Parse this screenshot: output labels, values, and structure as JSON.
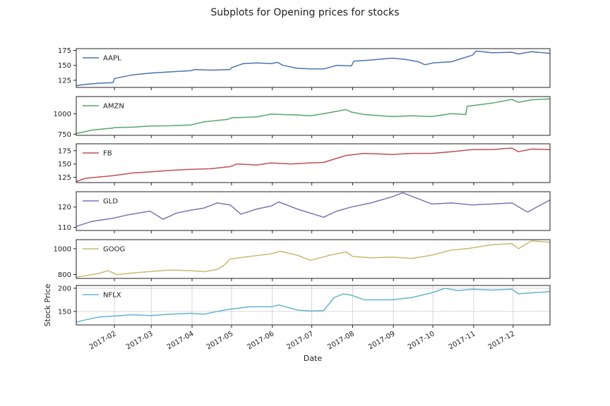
{
  "chart_data": {
    "type": "line",
    "title": "Subplots for Opening prices for stocks",
    "xlabel": "Date",
    "ylabel": "Stock Price",
    "xlim": [
      "2017-01-03",
      "2017-12-29"
    ],
    "x_ticks": [
      "2017-02",
      "2017-03",
      "2017-04",
      "2017-05",
      "2017-06",
      "2017-07",
      "2017-08",
      "2017-09",
      "2017-10",
      "2017-11",
      "2017-12"
    ],
    "legend_position": "upper-left",
    "shared_x": true,
    "subplots": [
      {
        "name": "AAPL",
        "color": "#4c72b0",
        "ylim": [
          113,
          178
        ],
        "yticks": [
          "125",
          "150",
          "175"
        ],
        "grid": false,
        "points": [
          [
            "2017-01-03",
            116
          ],
          [
            "2017-01-10",
            118
          ],
          [
            "2017-01-20",
            120
          ],
          [
            "2017-01-31",
            121
          ],
          [
            "2017-02-01",
            128
          ],
          [
            "2017-02-15",
            134
          ],
          [
            "2017-02-28",
            137
          ],
          [
            "2017-03-15",
            139
          ],
          [
            "2017-03-31",
            141
          ],
          [
            "2017-04-03",
            143
          ],
          [
            "2017-04-15",
            142
          ],
          [
            "2017-04-30",
            143
          ],
          [
            "2017-05-01",
            146
          ],
          [
            "2017-05-10",
            153
          ],
          [
            "2017-05-20",
            154
          ],
          [
            "2017-05-31",
            153
          ],
          [
            "2017-06-05",
            155
          ],
          [
            "2017-06-09",
            150
          ],
          [
            "2017-06-20",
            145
          ],
          [
            "2017-06-30",
            144
          ],
          [
            "2017-07-10",
            144
          ],
          [
            "2017-07-20",
            150
          ],
          [
            "2017-07-31",
            149
          ],
          [
            "2017-08-02",
            157
          ],
          [
            "2017-08-15",
            159
          ],
          [
            "2017-08-31",
            162
          ],
          [
            "2017-09-10",
            160
          ],
          [
            "2017-09-20",
            156
          ],
          [
            "2017-09-25",
            151
          ],
          [
            "2017-10-01",
            154
          ],
          [
            "2017-10-15",
            156
          ],
          [
            "2017-10-31",
            167
          ],
          [
            "2017-11-03",
            174
          ],
          [
            "2017-11-15",
            171
          ],
          [
            "2017-11-30",
            172
          ],
          [
            "2017-12-05",
            169
          ],
          [
            "2017-12-15",
            173
          ],
          [
            "2017-12-29",
            170
          ]
        ]
      },
      {
        "name": "AMZN",
        "color": "#55a868",
        "ylim": [
          735,
          1210
        ],
        "yticks": [
          "750",
          "1000"
        ],
        "grid": false,
        "points": [
          [
            "2017-01-03",
            757
          ],
          [
            "2017-01-15",
            800
          ],
          [
            "2017-01-31",
            825
          ],
          [
            "2017-02-01",
            830
          ],
          [
            "2017-02-15",
            835
          ],
          [
            "2017-02-28",
            850
          ],
          [
            "2017-03-15",
            852
          ],
          [
            "2017-03-31",
            862
          ],
          [
            "2017-04-10",
            900
          ],
          [
            "2017-04-28",
            930
          ],
          [
            "2017-05-01",
            950
          ],
          [
            "2017-05-20",
            960
          ],
          [
            "2017-05-31",
            995
          ],
          [
            "2017-06-09",
            990
          ],
          [
            "2017-06-20",
            985
          ],
          [
            "2017-06-30",
            975
          ],
          [
            "2017-07-10",
            1000
          ],
          [
            "2017-07-27",
            1050
          ],
          [
            "2017-07-31",
            1020
          ],
          [
            "2017-08-10",
            990
          ],
          [
            "2017-08-31",
            965
          ],
          [
            "2017-09-15",
            975
          ],
          [
            "2017-09-30",
            965
          ],
          [
            "2017-10-15",
            1000
          ],
          [
            "2017-10-26",
            990
          ],
          [
            "2017-10-27",
            1090
          ],
          [
            "2017-11-15",
            1130
          ],
          [
            "2017-11-30",
            1175
          ],
          [
            "2017-12-05",
            1140
          ],
          [
            "2017-12-15",
            1170
          ],
          [
            "2017-12-29",
            1182
          ]
        ]
      },
      {
        "name": "FB",
        "color": "#c44e52",
        "ylim": [
          115,
          188
        ],
        "yticks": [
          "125",
          "150",
          "175"
        ],
        "grid": false,
        "points": [
          [
            "2017-01-03",
            117
          ],
          [
            "2017-01-10",
            123
          ],
          [
            "2017-01-31",
            128
          ],
          [
            "2017-02-15",
            133
          ],
          [
            "2017-02-28",
            135
          ],
          [
            "2017-03-15",
            138
          ],
          [
            "2017-03-31",
            140
          ],
          [
            "2017-04-15",
            141
          ],
          [
            "2017-04-30",
            145
          ],
          [
            "2017-05-05",
            150
          ],
          [
            "2017-05-20",
            148
          ],
          [
            "2017-05-31",
            152
          ],
          [
            "2017-06-15",
            150
          ],
          [
            "2017-06-30",
            152
          ],
          [
            "2017-07-10",
            153
          ],
          [
            "2017-07-27",
            166
          ],
          [
            "2017-08-10",
            170
          ],
          [
            "2017-08-31",
            168
          ],
          [
            "2017-09-15",
            170
          ],
          [
            "2017-09-30",
            170
          ],
          [
            "2017-10-15",
            173
          ],
          [
            "2017-10-31",
            177
          ],
          [
            "2017-11-15",
            177
          ],
          [
            "2017-11-30",
            180
          ],
          [
            "2017-12-05",
            173
          ],
          [
            "2017-12-15",
            178
          ],
          [
            "2017-12-29",
            177
          ]
        ]
      },
      {
        "name": "GLD",
        "color": "#8172b2",
        "ylim": [
          108.5,
          127.5
        ],
        "yticks": [
          "110",
          "120"
        ],
        "grid": false,
        "points": [
          [
            "2017-01-03",
            110.5
          ],
          [
            "2017-01-15",
            113
          ],
          [
            "2017-01-31",
            114.5
          ],
          [
            "2017-02-10",
            116
          ],
          [
            "2017-02-28",
            118
          ],
          [
            "2017-03-10",
            114
          ],
          [
            "2017-03-20",
            117
          ],
          [
            "2017-03-31",
            118.5
          ],
          [
            "2017-04-10",
            119.5
          ],
          [
            "2017-04-20",
            122
          ],
          [
            "2017-04-30",
            121
          ],
          [
            "2017-05-08",
            116.5
          ],
          [
            "2017-05-20",
            119
          ],
          [
            "2017-05-31",
            120.5
          ],
          [
            "2017-06-06",
            122.5
          ],
          [
            "2017-06-20",
            119
          ],
          [
            "2017-07-10",
            115
          ],
          [
            "2017-07-20",
            118
          ],
          [
            "2017-07-31",
            120
          ],
          [
            "2017-08-15",
            122
          ],
          [
            "2017-08-31",
            125
          ],
          [
            "2017-09-08",
            127
          ],
          [
            "2017-09-20",
            124
          ],
          [
            "2017-09-30",
            121.5
          ],
          [
            "2017-10-15",
            122
          ],
          [
            "2017-10-31",
            121
          ],
          [
            "2017-11-15",
            121.5
          ],
          [
            "2017-11-30",
            122
          ],
          [
            "2017-12-12",
            117.5
          ],
          [
            "2017-12-29",
            123.5
          ]
        ]
      },
      {
        "name": "GOOG",
        "color": "#ccb974",
        "ylim": [
          770,
          1070
        ],
        "yticks": [
          "800",
          "1000"
        ],
        "grid": false,
        "points": [
          [
            "2017-01-03",
            780
          ],
          [
            "2017-01-20",
            808
          ],
          [
            "2017-01-27",
            830
          ],
          [
            "2017-02-03",
            800
          ],
          [
            "2017-02-15",
            812
          ],
          [
            "2017-02-28",
            823
          ],
          [
            "2017-03-15",
            835
          ],
          [
            "2017-03-31",
            830
          ],
          [
            "2017-04-10",
            822
          ],
          [
            "2017-04-20",
            840
          ],
          [
            "2017-04-25",
            870
          ],
          [
            "2017-04-30",
            920
          ],
          [
            "2017-05-15",
            940
          ],
          [
            "2017-05-31",
            960
          ],
          [
            "2017-06-07",
            980
          ],
          [
            "2017-06-20",
            950
          ],
          [
            "2017-06-30",
            910
          ],
          [
            "2017-07-15",
            950
          ],
          [
            "2017-07-27",
            975
          ],
          [
            "2017-08-01",
            940
          ],
          [
            "2017-08-15",
            930
          ],
          [
            "2017-08-31",
            935
          ],
          [
            "2017-09-15",
            925
          ],
          [
            "2017-09-30",
            950
          ],
          [
            "2017-10-15",
            990
          ],
          [
            "2017-10-27",
            1000
          ],
          [
            "2017-11-15",
            1030
          ],
          [
            "2017-11-30",
            1040
          ],
          [
            "2017-12-05",
            1000
          ],
          [
            "2017-12-15",
            1060
          ],
          [
            "2017-12-29",
            1050
          ]
        ]
      },
      {
        "name": "NFLX",
        "color": "#64b5cd",
        "ylim": [
          121,
          206
        ],
        "yticks": [
          "150",
          "200"
        ],
        "grid": true,
        "points": [
          [
            "2017-01-03",
            127
          ],
          [
            "2017-01-10",
            132
          ],
          [
            "2017-01-20",
            138
          ],
          [
            "2017-01-31",
            140
          ],
          [
            "2017-02-15",
            143
          ],
          [
            "2017-02-28",
            141
          ],
          [
            "2017-03-15",
            144
          ],
          [
            "2017-03-31",
            146
          ],
          [
            "2017-04-10",
            144
          ],
          [
            "2017-04-20",
            150
          ],
          [
            "2017-04-30",
            155
          ],
          [
            "2017-05-15",
            160
          ],
          [
            "2017-05-31",
            160
          ],
          [
            "2017-06-06",
            164
          ],
          [
            "2017-06-20",
            153
          ],
          [
            "2017-06-30",
            151
          ],
          [
            "2017-07-10",
            152
          ],
          [
            "2017-07-18",
            180
          ],
          [
            "2017-07-25",
            188
          ],
          [
            "2017-07-31",
            185
          ],
          [
            "2017-08-10",
            175
          ],
          [
            "2017-08-31",
            175
          ],
          [
            "2017-09-15",
            180
          ],
          [
            "2017-09-30",
            190
          ],
          [
            "2017-10-10",
            200
          ],
          [
            "2017-10-20",
            195
          ],
          [
            "2017-10-31",
            198
          ],
          [
            "2017-11-15",
            196
          ],
          [
            "2017-11-30",
            198
          ],
          [
            "2017-12-05",
            188
          ],
          [
            "2017-12-29",
            193
          ]
        ]
      }
    ]
  }
}
